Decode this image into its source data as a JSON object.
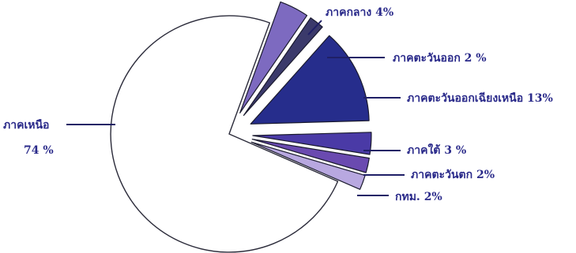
{
  "chart_data": {
    "type": "pie",
    "title": "",
    "slices": [
      {
        "label": "ภาคเหนือ",
        "value_label": "74 %",
        "value": 74,
        "color": "#ffffff"
      },
      {
        "label": "ภาคกลาง",
        "value_label": "4%",
        "value": 4,
        "color": "#7d6ac0"
      },
      {
        "label": "ภาคตะวันออก",
        "value_label": "2 %",
        "value": 2,
        "color": "#3b3a6b"
      },
      {
        "label": "ภาคตะวันออกเฉียงเหนือ",
        "value_label": "13%",
        "value": 13,
        "color": "#262d8c"
      },
      {
        "label": "ภาคใต้",
        "value_label": "3 %",
        "value": 3,
        "color": "#4a3aa6"
      },
      {
        "label": "ภาคตะวันตก",
        "value_label": "2%",
        "value": 2,
        "color": "#6a4ab0"
      },
      {
        "label": "กทม.",
        "value_label": "2%",
        "value": 2,
        "color": "#b8a8e0"
      }
    ],
    "legend": "none"
  }
}
